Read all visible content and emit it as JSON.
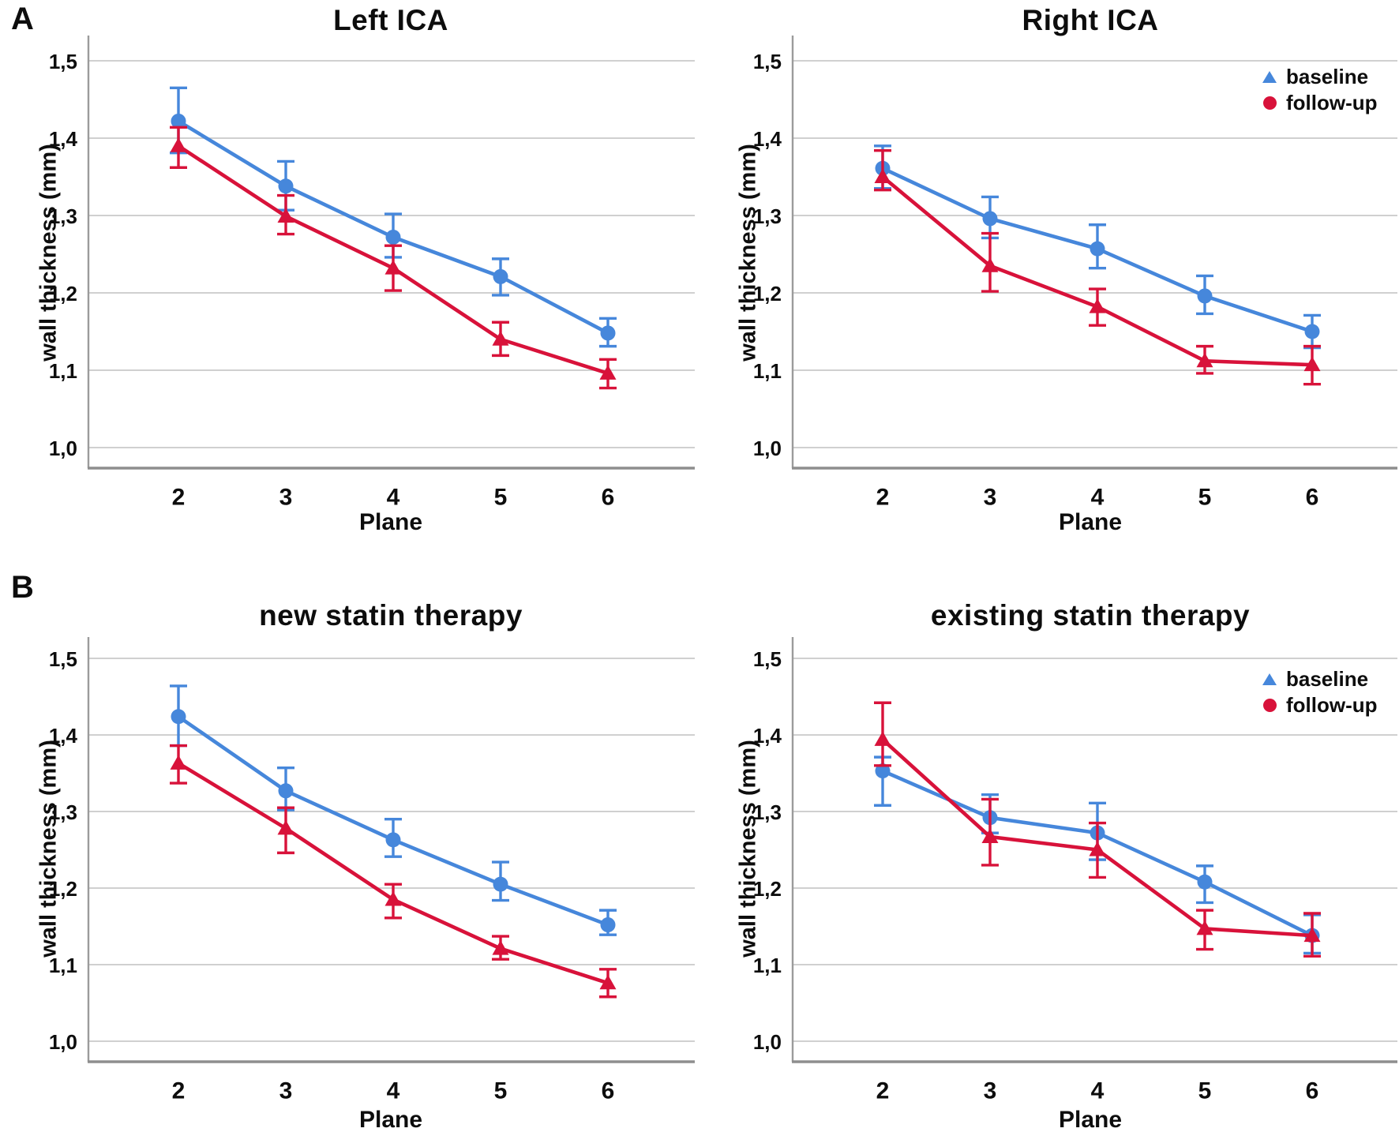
{
  "figure": {
    "panel_a": "A",
    "panel_b": "B",
    "colors": {
      "baseline": "#4687db",
      "followup": "#d8123a",
      "grid": "#c9c9c9",
      "axis_left": "#9b9b9b",
      "axis_bottom": "#8e8e8e",
      "text": "#0d0d0d",
      "background": "#ffffff"
    }
  },
  "chart_data": [
    {
      "type": "line",
      "panel": "A",
      "title": "Left ICA",
      "xlabel": "Plane",
      "ylabel": "wall thickness (mm)",
      "x": [
        2,
        3,
        4,
        5,
        6
      ],
      "ylim": [
        0.965,
        1.535
      ],
      "yticks": [
        1.0,
        1.1,
        1.2,
        1.3,
        1.4,
        1.5
      ],
      "ytick_labels": [
        "1,0",
        "1,1",
        "1,2",
        "1,3",
        "1,4",
        "1,5"
      ],
      "grid": true,
      "legend_position": "none",
      "series": [
        {
          "name": "baseline",
          "color": "#4687db",
          "marker": "circle",
          "values": [
            1.422,
            1.338,
            1.272,
            1.221,
            1.148
          ],
          "err_high": [
            1.465,
            1.37,
            1.302,
            1.244,
            1.167
          ],
          "err_low": [
            1.381,
            1.307,
            1.246,
            1.197,
            1.131
          ]
        },
        {
          "name": "follow-up",
          "color": "#d8123a",
          "marker": "triangle",
          "values": [
            1.39,
            1.299,
            1.232,
            1.14,
            1.096
          ],
          "err_high": [
            1.414,
            1.326,
            1.261,
            1.162,
            1.114
          ],
          "err_low": [
            1.362,
            1.276,
            1.203,
            1.119,
            1.077
          ]
        }
      ]
    },
    {
      "type": "line",
      "panel": "A",
      "title": "Right ICA",
      "xlabel": "Plane",
      "ylabel": "wall thickness (mm)",
      "x": [
        2,
        3,
        4,
        5,
        6
      ],
      "ylim": [
        0.965,
        1.535
      ],
      "yticks": [
        1.0,
        1.1,
        1.2,
        1.3,
        1.4,
        1.5
      ],
      "ytick_labels": [
        "1,0",
        "1,1",
        "1,2",
        "1,3",
        "1,4",
        "1,5"
      ],
      "grid": true,
      "legend_position": "top-right",
      "series": [
        {
          "name": "baseline",
          "color": "#4687db",
          "marker": "circle",
          "values": [
            1.361,
            1.296,
            1.257,
            1.196,
            1.15
          ],
          "err_high": [
            1.39,
            1.324,
            1.288,
            1.222,
            1.171
          ],
          "err_low": [
            1.335,
            1.271,
            1.232,
            1.173,
            1.129
          ]
        },
        {
          "name": "follow-up",
          "color": "#d8123a",
          "marker": "triangle",
          "values": [
            1.35,
            1.235,
            1.182,
            1.112,
            1.107
          ],
          "err_high": [
            1.384,
            1.277,
            1.205,
            1.131,
            1.131
          ],
          "err_low": [
            1.333,
            1.202,
            1.158,
            1.096,
            1.082
          ]
        }
      ]
    },
    {
      "type": "line",
      "panel": "B",
      "title": "new statin therapy",
      "xlabel": "Plane",
      "ylabel": "wall thickness (mm)",
      "x": [
        2,
        3,
        4,
        5,
        6
      ],
      "ylim": [
        0.965,
        1.535
      ],
      "yticks": [
        1.0,
        1.1,
        1.2,
        1.3,
        1.4,
        1.5
      ],
      "ytick_labels": [
        "1,0",
        "1,1",
        "1,2",
        "1,3",
        "1,4",
        "1,5"
      ],
      "grid": true,
      "legend_position": "none",
      "series": [
        {
          "name": "baseline",
          "color": "#4687db",
          "marker": "circle",
          "values": [
            1.424,
            1.327,
            1.263,
            1.205,
            1.152
          ],
          "err_high": [
            1.464,
            1.357,
            1.29,
            1.234,
            1.171
          ],
          "err_low": [
            1.386,
            1.302,
            1.241,
            1.184,
            1.139
          ]
        },
        {
          "name": "follow-up",
          "color": "#d8123a",
          "marker": "triangle",
          "values": [
            1.363,
            1.278,
            1.185,
            1.121,
            1.076
          ],
          "err_high": [
            1.386,
            1.305,
            1.205,
            1.137,
            1.094
          ],
          "err_low": [
            1.337,
            1.246,
            1.161,
            1.107,
            1.058
          ]
        }
      ]
    },
    {
      "type": "line",
      "panel": "B",
      "title": "existing statin therapy",
      "xlabel": "Plane",
      "ylabel": "wall thickness (mm)",
      "x": [
        2,
        3,
        4,
        5,
        6
      ],
      "ylim": [
        0.965,
        1.535
      ],
      "yticks": [
        1.0,
        1.1,
        1.2,
        1.3,
        1.4,
        1.5
      ],
      "ytick_labels": [
        "1,0",
        "1,1",
        "1,2",
        "1,3",
        "1,4",
        "1,5"
      ],
      "grid": true,
      "legend_position": "top-right",
      "series": [
        {
          "name": "baseline",
          "color": "#4687db",
          "marker": "circle",
          "values": [
            1.353,
            1.292,
            1.272,
            1.208,
            1.138
          ],
          "err_high": [
            1.371,
            1.322,
            1.311,
            1.229,
            1.165
          ],
          "err_low": [
            1.308,
            1.272,
            1.237,
            1.181,
            1.115
          ]
        },
        {
          "name": "follow-up",
          "color": "#d8123a",
          "marker": "triangle",
          "values": [
            1.394,
            1.267,
            1.25,
            1.147,
            1.138
          ],
          "err_high": [
            1.442,
            1.316,
            1.285,
            1.171,
            1.167
          ],
          "err_low": [
            1.36,
            1.23,
            1.214,
            1.12,
            1.111
          ]
        }
      ]
    }
  ]
}
